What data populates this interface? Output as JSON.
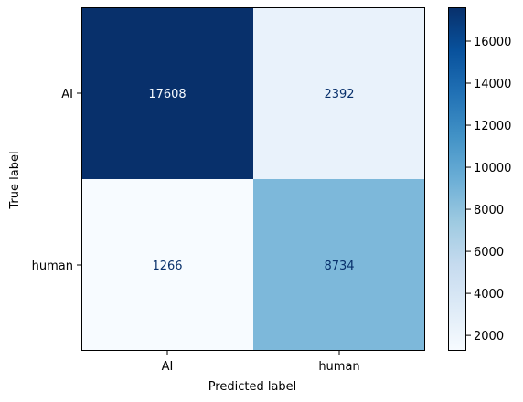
{
  "chart_data": {
    "type": "heatmap",
    "xlabel": "Predicted label",
    "ylabel": "True label",
    "x_categories": [
      "AI",
      "human"
    ],
    "y_categories": [
      "AI",
      "human"
    ],
    "values": [
      [
        17608,
        2392
      ],
      [
        1266,
        8734
      ]
    ],
    "colormap": "Blues",
    "colorbar": {
      "range": [
        1266,
        17608
      ],
      "ticks": [
        2000,
        4000,
        6000,
        8000,
        10000,
        12000,
        14000,
        16000
      ]
    },
    "colors": {
      "low": "#f7fbff",
      "high": "#08306b",
      "text_on_dark": "#f7fbff",
      "text_on_light": "#08306b"
    }
  }
}
